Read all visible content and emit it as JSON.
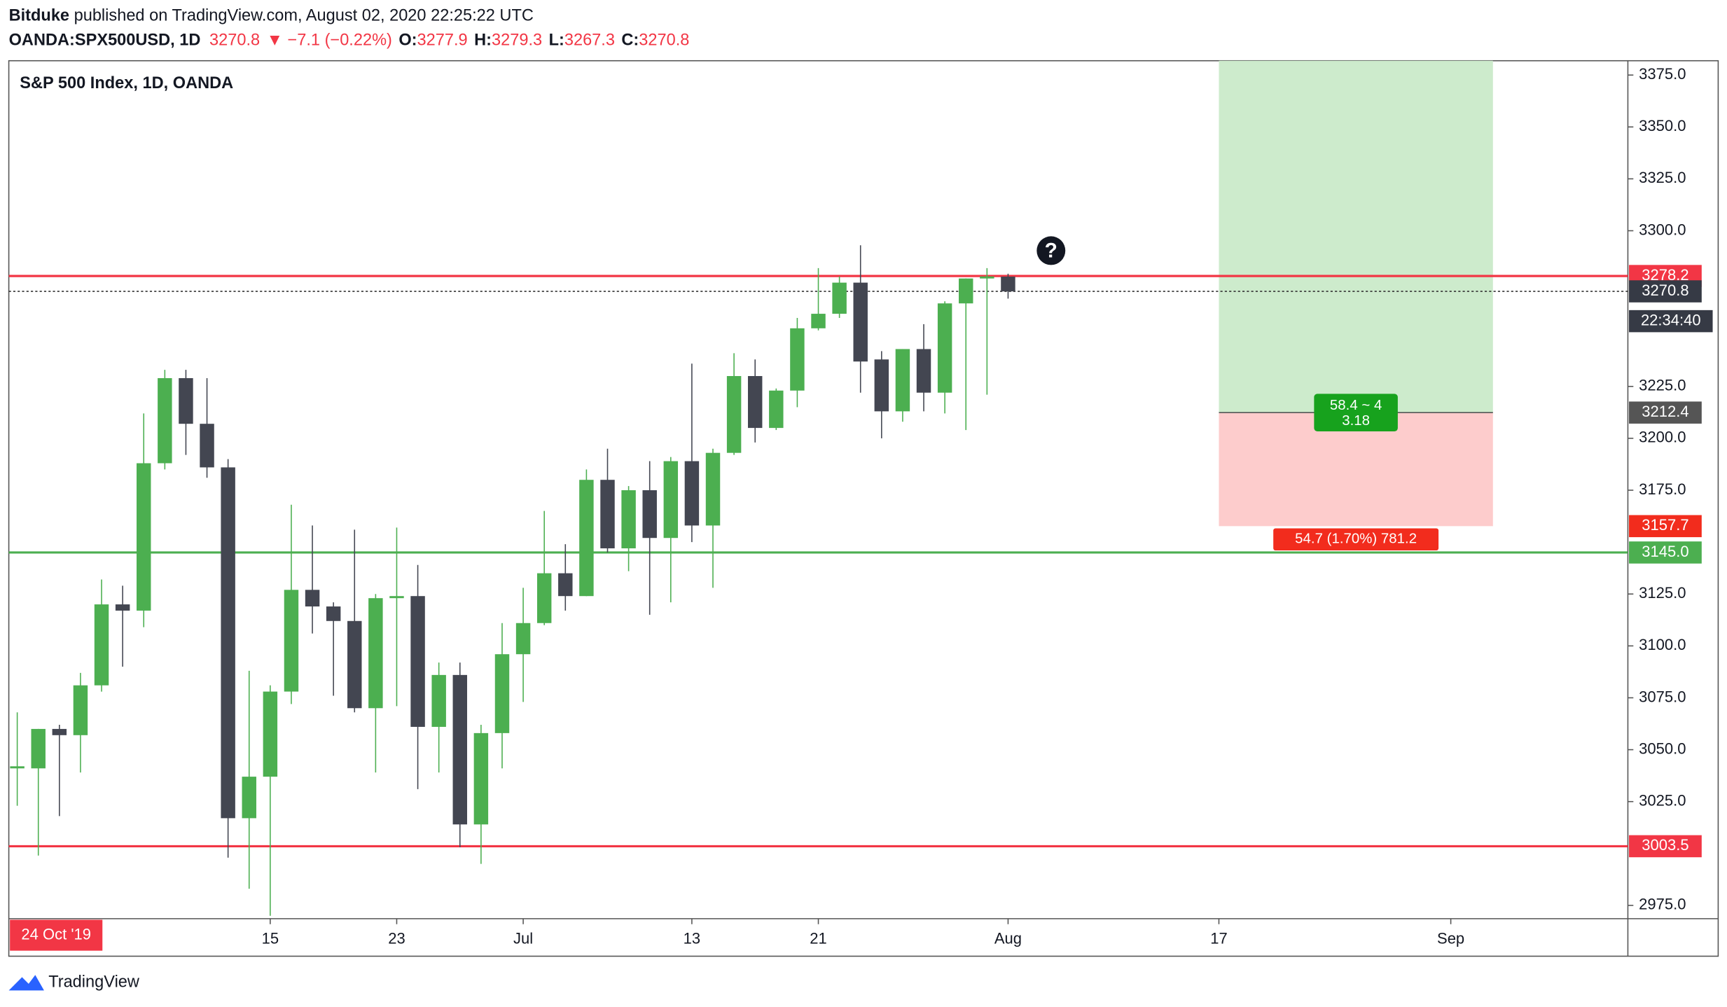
{
  "header": {
    "author": "Bitduke",
    "published": " published on TradingView.com, August 02, 2020 22:25:22 UTC",
    "symbol": "OANDA:SPX500USD, 1D",
    "last": "3270.8",
    "change": "▼ −7.1 (−0.22%)",
    "ohlc": [
      {
        "key": "O:",
        "value": "3277.9"
      },
      {
        "key": "H:",
        "value": "3279.3"
      },
      {
        "key": "L:",
        "value": "3267.3"
      },
      {
        "key": "C:",
        "value": "3270.8"
      }
    ]
  },
  "footer": "TradingView",
  "chart_data": {
    "type": "candlestick",
    "title": "S&P 500 Index, 1D, OANDA",
    "up_color": "#4caf50",
    "down_color": "#434651",
    "x": [
      0,
      1,
      2,
      3,
      4,
      5,
      6,
      7,
      8,
      9,
      10,
      11,
      12,
      13,
      14,
      15,
      16,
      17,
      18,
      19,
      20,
      21,
      22,
      23,
      24,
      25,
      26,
      27,
      28,
      29,
      30,
      31,
      32,
      33,
      34,
      35,
      36,
      37,
      38,
      39,
      40,
      41,
      42,
      43,
      44,
      45,
      46,
      47
    ],
    "open": [
      3041,
      3041,
      3060,
      3057,
      3081,
      3120,
      3117,
      3188,
      3229,
      3207,
      3186,
      3017,
      3037,
      3078,
      3127,
      3119,
      3112,
      3070,
      3123,
      3124,
      3061,
      3086,
      3014,
      3058,
      3096,
      3111,
      3135,
      3124,
      3180,
      3147,
      3175,
      3152,
      3189,
      3158,
      3193,
      3230,
      3205,
      3223,
      3253,
      3260,
      3275,
      3238,
      3213,
      3243,
      3222,
      3265,
      3277,
      3277.9
    ],
    "high": [
      3068,
      3060,
      3062,
      3087,
      3132,
      3129,
      3212,
      3233,
      3233,
      3229,
      3190,
      3088,
      3081,
      3168,
      3158,
      3121,
      3156,
      3125,
      3157,
      3139,
      3092,
      3092,
      3062,
      3111,
      3128,
      3165,
      3149,
      3185,
      3195,
      3177,
      3189,
      3191,
      3236,
      3195,
      3241,
      3238,
      3224,
      3258,
      3282,
      3278,
      3293,
      3242,
      3243,
      3255,
      3266,
      3277,
      3282,
      3279.3
    ],
    "low": [
      3023,
      2999,
      3018,
      3039,
      3078,
      3090,
      3109,
      3185,
      3192,
      3181,
      2998,
      2983,
      2970,
      3072,
      3106,
      3076,
      3068,
      3039,
      3071,
      3031,
      3039,
      3003,
      2995,
      3041,
      3073,
      3110,
      3117,
      3124,
      3145,
      3136,
      3115,
      3121,
      3150,
      3128,
      3192,
      3198,
      3204,
      3215,
      3252,
      3258,
      3222,
      3200,
      3208,
      3213,
      3212,
      3204,
      3221,
      3267.3
    ],
    "close": [
      3042,
      3060,
      3057,
      3081,
      3120,
      3117,
      3188,
      3229,
      3207,
      3186,
      3017,
      3037,
      3078,
      3127,
      3119,
      3112,
      3070,
      3123,
      3124,
      3061,
      3086,
      3014,
      3058,
      3096,
      3111,
      3135,
      3124,
      3180,
      3147,
      3175,
      3152,
      3189,
      3158,
      3193,
      3230,
      3205,
      3223,
      3253,
      3260,
      3275,
      3237,
      3213,
      3243,
      3222,
      3265,
      3277,
      3278,
      3270.8
    ],
    "xlim": [
      -0.4,
      76.4
    ],
    "xticks": [
      {
        "value": 12,
        "label": "15"
      },
      {
        "value": 18,
        "label": "23"
      },
      {
        "value": 24,
        "label": "Jul"
      },
      {
        "value": 32,
        "label": "13"
      },
      {
        "value": 38,
        "label": "21"
      },
      {
        "value": 47,
        "label": "Aug"
      },
      {
        "value": 57,
        "label": "17"
      },
      {
        "value": 68,
        "label": "Sep"
      }
    ],
    "ylim": [
      2968.6,
      3381.9
    ],
    "yticks": [
      {
        "value": 3375,
        "label": "3375.0"
      },
      {
        "value": 3350,
        "label": "3350.0"
      },
      {
        "value": 3325,
        "label": "3325.0"
      },
      {
        "value": 3300,
        "label": "3300.0"
      },
      {
        "value": 3225,
        "label": "3225.0"
      },
      {
        "value": 3200,
        "label": "3200.0"
      },
      {
        "value": 3175,
        "label": "3175.0"
      },
      {
        "value": 3125,
        "label": "3125.0"
      },
      {
        "value": 3100,
        "label": "3100.0"
      },
      {
        "value": 3075,
        "label": "3075.0"
      },
      {
        "value": 3050,
        "label": "3050.0"
      },
      {
        "value": 3025,
        "label": "3025.0"
      },
      {
        "value": 2975,
        "label": "2975.0"
      }
    ],
    "grid": false,
    "hlines": [
      {
        "value": 3278.2,
        "label": "3278.2",
        "color": "#f23645"
      },
      {
        "value": 3145,
        "label": "3145.0",
        "color": "#4caf50"
      },
      {
        "value": 3003.5,
        "label": "3003.5",
        "color": "#f23645"
      }
    ],
    "last_price": {
      "value": 3270.8,
      "label": "3270.8",
      "countdown": "22:34:40",
      "color": "#363a45"
    },
    "position": {
      "x_start": 57,
      "x_end": 70,
      "entry": 3212.4,
      "entry_label": "3212.4",
      "stop": 3157.7,
      "stop_label": "3157.7",
      "target_text": "58.4 ~ 4",
      "target_text2": "3.18",
      "stop_text": "54.7 (1.70%) 781.2"
    },
    "annotation": "?",
    "date_tag": "24 Oct '19"
  }
}
